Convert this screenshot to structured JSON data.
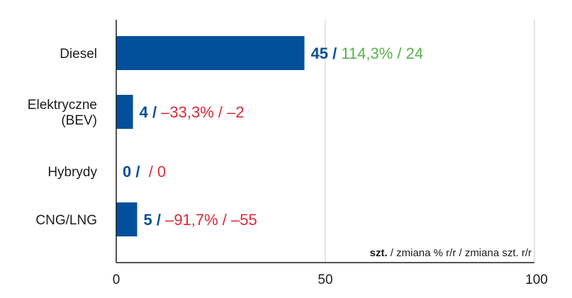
{
  "chart_data": {
    "type": "bar",
    "orientation": "horizontal",
    "categories": [
      [
        "Diesel"
      ],
      [
        "Elektryczne",
        "(BEV)"
      ],
      [
        "Hybrydy"
      ],
      [
        "CNG/LNG"
      ]
    ],
    "values": [
      45,
      4,
      0,
      5
    ],
    "change_pct": [
      "114,3%",
      "–33,3%",
      "",
      "–91,7%"
    ],
    "change_units": [
      "24",
      "–2",
      "0",
      "–55"
    ],
    "xlim": [
      0,
      100
    ],
    "xticks": [
      "0",
      "50",
      "100"
    ],
    "grid": "vertical at ticks",
    "unit_note": {
      "bold": "szt.",
      "rest": " / zmiana % r/r / zmiana szt. r/r"
    },
    "colors": {
      "bar": "#02509b",
      "value": "#0a4f93",
      "positive": "#55b24a",
      "negative": "#d92a3a",
      "grid": "#c8c8c8",
      "axis": "#1c1c1c"
    }
  }
}
